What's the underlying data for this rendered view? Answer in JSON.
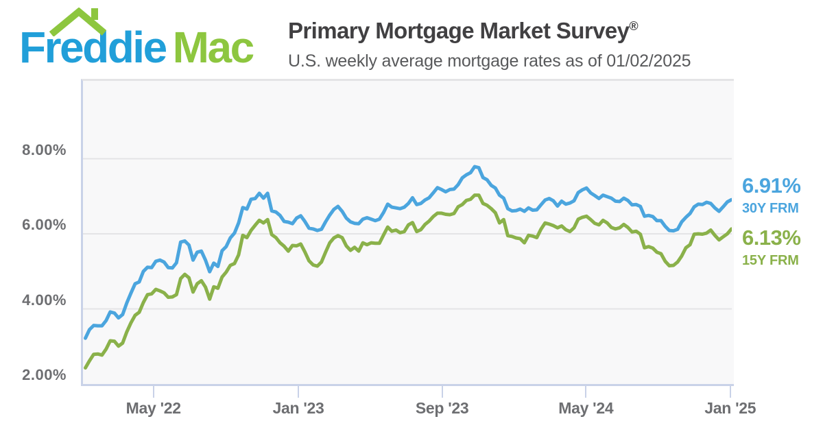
{
  "header": {
    "logo_freddie": "Freddie",
    "logo_mac": "Mac",
    "title": "Primary Mortgage Market Survey",
    "title_reg": "®",
    "subtitle": "U.S. weekly average mortgage rates as of 01/02/2025"
  },
  "colors": {
    "logo_blue": "#219FD9",
    "logo_green": "#8DC63F",
    "line_blue": "#4BA5DE",
    "line_green": "#8AB14A",
    "title_dark": "#414042",
    "subtitle_gray": "#58595B",
    "axis_gray": "#6D6E71",
    "plot_background": "#F8F8F9",
    "gridline": "#E4E4E6",
    "axis_border": "#C9D2E8"
  },
  "chart_data": {
    "type": "line",
    "title": "Primary Mortgage Market Survey®",
    "subtitle": "U.S. weekly average mortgage rates as of 01/02/2025",
    "x_unit": "weekly observations (Thursdays), 01/06/2022 through 01/02/2025",
    "grid": "horizontal gridlines at y ticks",
    "legend_position": "right of plot, stacked value labels",
    "ylim_percent": [
      2.0,
      10.1
    ],
    "week_step_days": 7,
    "total_days_span": 1092,
    "y_ticks": [
      {
        "label": "8.00%",
        "value": 8
      },
      {
        "label": "6.00%",
        "value": 6
      },
      {
        "label": "4.00%",
        "value": 4
      },
      {
        "label": "2.00%",
        "value": 2
      }
    ],
    "x_ticks": [
      {
        "label": "May '22",
        "day": 115
      },
      {
        "label": "Jan '23",
        "day": 360
      },
      {
        "label": "Sep '23",
        "day": 603
      },
      {
        "label": "May '24",
        "day": 846
      },
      {
        "label": "Jan '25",
        "day": 1090
      }
    ],
    "series": [
      {
        "name": "30Y FRM",
        "end_value_label": "6.91%",
        "color": "#4BA5DE",
        "values": [
          3.22,
          3.45,
          3.56,
          3.55,
          3.55,
          3.69,
          3.92,
          3.89,
          3.76,
          3.85,
          4.16,
          4.42,
          4.67,
          4.72,
          5.0,
          5.11,
          5.1,
          5.27,
          5.3,
          5.25,
          5.1,
          5.09,
          5.23,
          5.78,
          5.81,
          5.7,
          5.3,
          5.51,
          5.54,
          5.3,
          4.99,
          5.22,
          5.13,
          5.55,
          5.66,
          5.89,
          6.02,
          6.29,
          6.7,
          6.66,
          6.92,
          6.94,
          7.08,
          6.95,
          7.08,
          6.61,
          6.58,
          6.49,
          6.33,
          6.31,
          6.27,
          6.42,
          6.48,
          6.33,
          6.15,
          6.13,
          6.09,
          6.12,
          6.32,
          6.5,
          6.65,
          6.73,
          6.6,
          6.42,
          6.32,
          6.28,
          6.27,
          6.39,
          6.43,
          6.39,
          6.35,
          6.39,
          6.57,
          6.79,
          6.71,
          6.69,
          6.67,
          6.71,
          6.81,
          6.96,
          6.78,
          6.81,
          6.9,
          6.96,
          7.09,
          7.23,
          7.18,
          7.12,
          7.18,
          7.19,
          7.31,
          7.49,
          7.57,
          7.63,
          7.79,
          7.76,
          7.5,
          7.44,
          7.29,
          7.22,
          7.03,
          6.95,
          6.67,
          6.61,
          6.62,
          6.66,
          6.6,
          6.69,
          6.63,
          6.64,
          6.77,
          6.9,
          6.94,
          6.88,
          6.74,
          6.87,
          6.79,
          6.82,
          6.88,
          7.1,
          7.17,
          7.22,
          7.09,
          7.02,
          6.94,
          7.03,
          6.99,
          6.95,
          6.87,
          6.86,
          6.95,
          6.89,
          6.77,
          6.78,
          6.73,
          6.47,
          6.49,
          6.46,
          6.35,
          6.35,
          6.2,
          6.09,
          6.08,
          6.12,
          6.32,
          6.44,
          6.54,
          6.72,
          6.79,
          6.78,
          6.84,
          6.81,
          6.69,
          6.6,
          6.72,
          6.85,
          6.91
        ]
      },
      {
        "name": "15Y FRM",
        "end_value_label": "6.13%",
        "color": "#8AB14A",
        "values": [
          2.43,
          2.62,
          2.79,
          2.8,
          2.77,
          2.93,
          3.15,
          3.14,
          3.01,
          3.09,
          3.39,
          3.63,
          3.83,
          3.91,
          4.17,
          4.38,
          4.4,
          4.52,
          4.48,
          4.43,
          4.31,
          4.32,
          4.38,
          4.81,
          4.92,
          4.83,
          4.45,
          4.67,
          4.75,
          4.58,
          4.26,
          4.59,
          4.55,
          4.85,
          4.98,
          5.16,
          5.21,
          5.44,
          5.96,
          5.9,
          6.09,
          6.23,
          6.36,
          6.29,
          6.38,
          5.98,
          5.9,
          5.76,
          5.67,
          5.54,
          5.69,
          5.68,
          5.73,
          5.52,
          5.28,
          5.17,
          5.14,
          5.25,
          5.51,
          5.76,
          5.89,
          5.95,
          5.9,
          5.68,
          5.56,
          5.64,
          5.54,
          5.76,
          5.71,
          5.76,
          5.75,
          5.75,
          5.97,
          6.18,
          6.07,
          6.1,
          6.03,
          6.06,
          6.24,
          6.3,
          6.06,
          6.11,
          6.25,
          6.34,
          6.46,
          6.55,
          6.55,
          6.52,
          6.51,
          6.54,
          6.72,
          6.78,
          6.89,
          6.92,
          7.03,
          7.03,
          6.81,
          6.76,
          6.67,
          6.56,
          6.29,
          6.38,
          5.95,
          5.93,
          5.89,
          5.87,
          5.76,
          5.96,
          5.94,
          5.9,
          6.12,
          6.29,
          6.26,
          6.22,
          6.16,
          6.21,
          6.11,
          6.06,
          6.16,
          6.39,
          6.44,
          6.47,
          6.38,
          6.28,
          6.24,
          6.36,
          6.29,
          6.17,
          6.13,
          6.16,
          6.25,
          6.17,
          6.05,
          6.07,
          5.99,
          5.63,
          5.66,
          5.62,
          5.51,
          5.47,
          5.27,
          5.15,
          5.16,
          5.25,
          5.41,
          5.63,
          5.71,
          5.99,
          6.0,
          5.99,
          6.02,
          6.1,
          5.96,
          5.84,
          5.92,
          6.0,
          6.13
        ]
      }
    ]
  }
}
